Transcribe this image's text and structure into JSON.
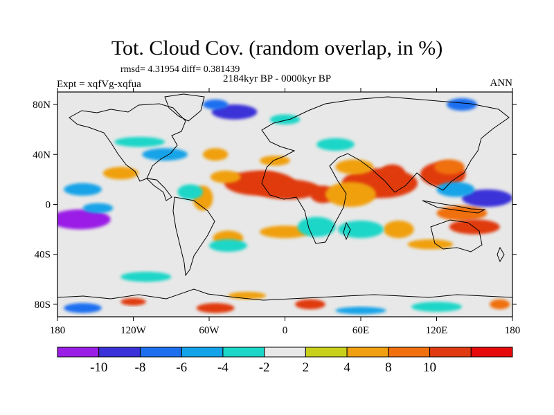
{
  "title": "Tot. Cloud Cov. (random overlap, in %)",
  "stats_line": "rmsd= 4.31954 diff= 0.381439",
  "experiment_label": "Expt = xqfVg-xqfua",
  "period_label": "2184kyr BP - 0000kyr BP",
  "season_label": "ANN",
  "map": {
    "projection": "cylindrical equidistant",
    "lon_range": [
      -180,
      180
    ],
    "lat_range": [
      -90,
      90
    ],
    "y_ticks": [
      {
        "lat": 80,
        "label": "80N"
      },
      {
        "lat": 40,
        "label": "40N"
      },
      {
        "lat": 0,
        "label": "0"
      },
      {
        "lat": -40,
        "label": "40S"
      },
      {
        "lat": -80,
        "label": "80S"
      }
    ],
    "x_ticks": [
      {
        "lon": -180,
        "label": "180"
      },
      {
        "lon": -120,
        "label": "120W"
      },
      {
        "lon": -60,
        "label": "60W"
      },
      {
        "lon": 0,
        "label": "0"
      },
      {
        "lon": 60,
        "label": "60E"
      },
      {
        "lon": 120,
        "label": "120E"
      },
      {
        "lon": 180,
        "label": "180"
      }
    ],
    "background_color": "#e8e8e8",
    "anomaly_regions": [
      {
        "lon": -20,
        "lat": 17,
        "rlon": 28,
        "rlat": 10,
        "level": 12
      },
      {
        "lon": 2,
        "lat": 12,
        "rlon": 26,
        "rlat": 8,
        "level": 12
      },
      {
        "lon": -15,
        "lat": 20,
        "rlon": 12,
        "rlat": 6,
        "level": 14
      },
      {
        "lon": 30,
        "lat": 8,
        "rlon": 10,
        "rlat": 7,
        "level": 10
      },
      {
        "lon": 75,
        "lat": 17,
        "rlon": 30,
        "rlat": 12,
        "level": 10
      },
      {
        "lon": 85,
        "lat": 25,
        "rlon": 10,
        "rlat": 7,
        "level": 12
      },
      {
        "lon": 125,
        "lat": 24,
        "rlon": 18,
        "rlat": 10,
        "level": 10
      },
      {
        "lon": 130,
        "lat": 30,
        "rlon": 12,
        "rlat": 6,
        "level": 8
      },
      {
        "lon": 52,
        "lat": 8,
        "rlon": 20,
        "rlat": 10,
        "level": 6
      },
      {
        "lon": 55,
        "lat": 30,
        "rlon": 15,
        "rlat": 6,
        "level": 6
      },
      {
        "lon": -8,
        "lat": 35,
        "rlon": 12,
        "rlat": 4,
        "level": 6
      },
      {
        "lon": -47,
        "lat": 22,
        "rlon": 12,
        "rlat": 5,
        "level": 6
      },
      {
        "lon": -65,
        "lat": 5,
        "rlon": 8,
        "rlat": 10,
        "level": 6
      },
      {
        "lon": -130,
        "lat": 25,
        "rlon": 14,
        "rlat": 5,
        "level": 4
      },
      {
        "lon": -55,
        "lat": 40,
        "rlon": 10,
        "rlat": 5,
        "level": 4
      },
      {
        "lon": 0,
        "lat": -22,
        "rlon": 20,
        "rlat": 5,
        "level": 4
      },
      {
        "lon": -45,
        "lat": -27,
        "rlon": 12,
        "rlat": 6,
        "level": 4
      },
      {
        "lon": 140,
        "lat": -7,
        "rlon": 20,
        "rlat": 6,
        "level": 8
      },
      {
        "lon": 150,
        "lat": -18,
        "rlon": 20,
        "rlat": 6,
        "level": 12
      },
      {
        "lon": 115,
        "lat": -32,
        "rlon": 18,
        "rlat": 4,
        "level": 4
      },
      {
        "lon": 90,
        "lat": -20,
        "rlon": 12,
        "rlat": 7,
        "level": 4
      },
      {
        "lon": -162,
        "lat": -12,
        "rlon": 24,
        "rlat": 8,
        "level": -11
      },
      {
        "lon": -148,
        "lat": -3,
        "rlon": 12,
        "rlat": 4,
        "level": -6
      },
      {
        "lon": -160,
        "lat": 12,
        "rlon": 15,
        "rlat": 5,
        "level": -6
      },
      {
        "lon": 160,
        "lat": 5,
        "rlon": 20,
        "rlat": 7,
        "level": -10
      },
      {
        "lon": 135,
        "lat": 12,
        "rlon": 15,
        "rlat": 6,
        "level": -6
      },
      {
        "lon": -75,
        "lat": 10,
        "rlon": 10,
        "rlat": 6,
        "level": -4
      },
      {
        "lon": -95,
        "lat": 40,
        "rlon": 18,
        "rlat": 5,
        "level": -6
      },
      {
        "lon": -45,
        "lat": -33,
        "rlon": 15,
        "rlat": 5,
        "level": -4
      },
      {
        "lon": 25,
        "lat": -18,
        "rlon": 15,
        "rlat": 8,
        "level": -4
      },
      {
        "lon": 60,
        "lat": -20,
        "rlon": 18,
        "rlat": 7,
        "level": -4
      },
      {
        "lon": 40,
        "lat": 48,
        "rlon": 15,
        "rlat": 5,
        "level": -4
      },
      {
        "lon": -115,
        "lat": 50,
        "rlon": 20,
        "rlat": 4,
        "level": -3
      },
      {
        "lon": -40,
        "lat": 74,
        "rlon": 18,
        "rlat": 6,
        "level": -9
      },
      {
        "lon": -55,
        "lat": 80,
        "rlon": 10,
        "rlat": 4,
        "level": -7
      },
      {
        "lon": 0,
        "lat": 68,
        "rlon": 12,
        "rlat": 4,
        "level": -4
      },
      {
        "lon": 140,
        "lat": 80,
        "rlon": 12,
        "rlat": 5,
        "level": -7
      },
      {
        "lon": -110,
        "lat": -58,
        "rlon": 20,
        "rlat": 4,
        "level": -3
      },
      {
        "lon": -160,
        "lat": -83,
        "rlon": 15,
        "rlat": 4,
        "level": -8
      },
      {
        "lon": -120,
        "lat": -78,
        "rlon": 10,
        "rlat": 3,
        "level": 10
      },
      {
        "lon": -55,
        "lat": -83,
        "rlon": 15,
        "rlat": 4,
        "level": 10
      },
      {
        "lon": 20,
        "lat": -80,
        "rlon": 12,
        "rlat": 4,
        "level": 10
      },
      {
        "lon": 60,
        "lat": -85,
        "rlon": 20,
        "rlat": 3,
        "level": -6
      },
      {
        "lon": 120,
        "lat": -82,
        "rlon": 20,
        "rlat": 4,
        "level": -4
      },
      {
        "lon": 170,
        "lat": -80,
        "rlon": 8,
        "rlat": 4,
        "level": 8
      },
      {
        "lon": -30,
        "lat": -73,
        "rlon": 15,
        "rlat": 3,
        "level": 6
      }
    ]
  },
  "colorbar": {
    "colors": [
      "#9a1ee6",
      "#3b32d8",
      "#1d6ff0",
      "#12a3e8",
      "#1cd6c8",
      "#e8e8e8",
      "#c8d01a",
      "#f0a010",
      "#f07010",
      "#e03a10",
      "#e60a0a"
    ],
    "thresholds": [
      -10,
      -8,
      -6,
      -4,
      -2,
      2,
      4,
      8,
      10
    ],
    "labels": [
      "-10",
      "-8",
      "-6",
      "-4",
      "-2",
      "2",
      "4",
      "8",
      "10"
    ]
  }
}
